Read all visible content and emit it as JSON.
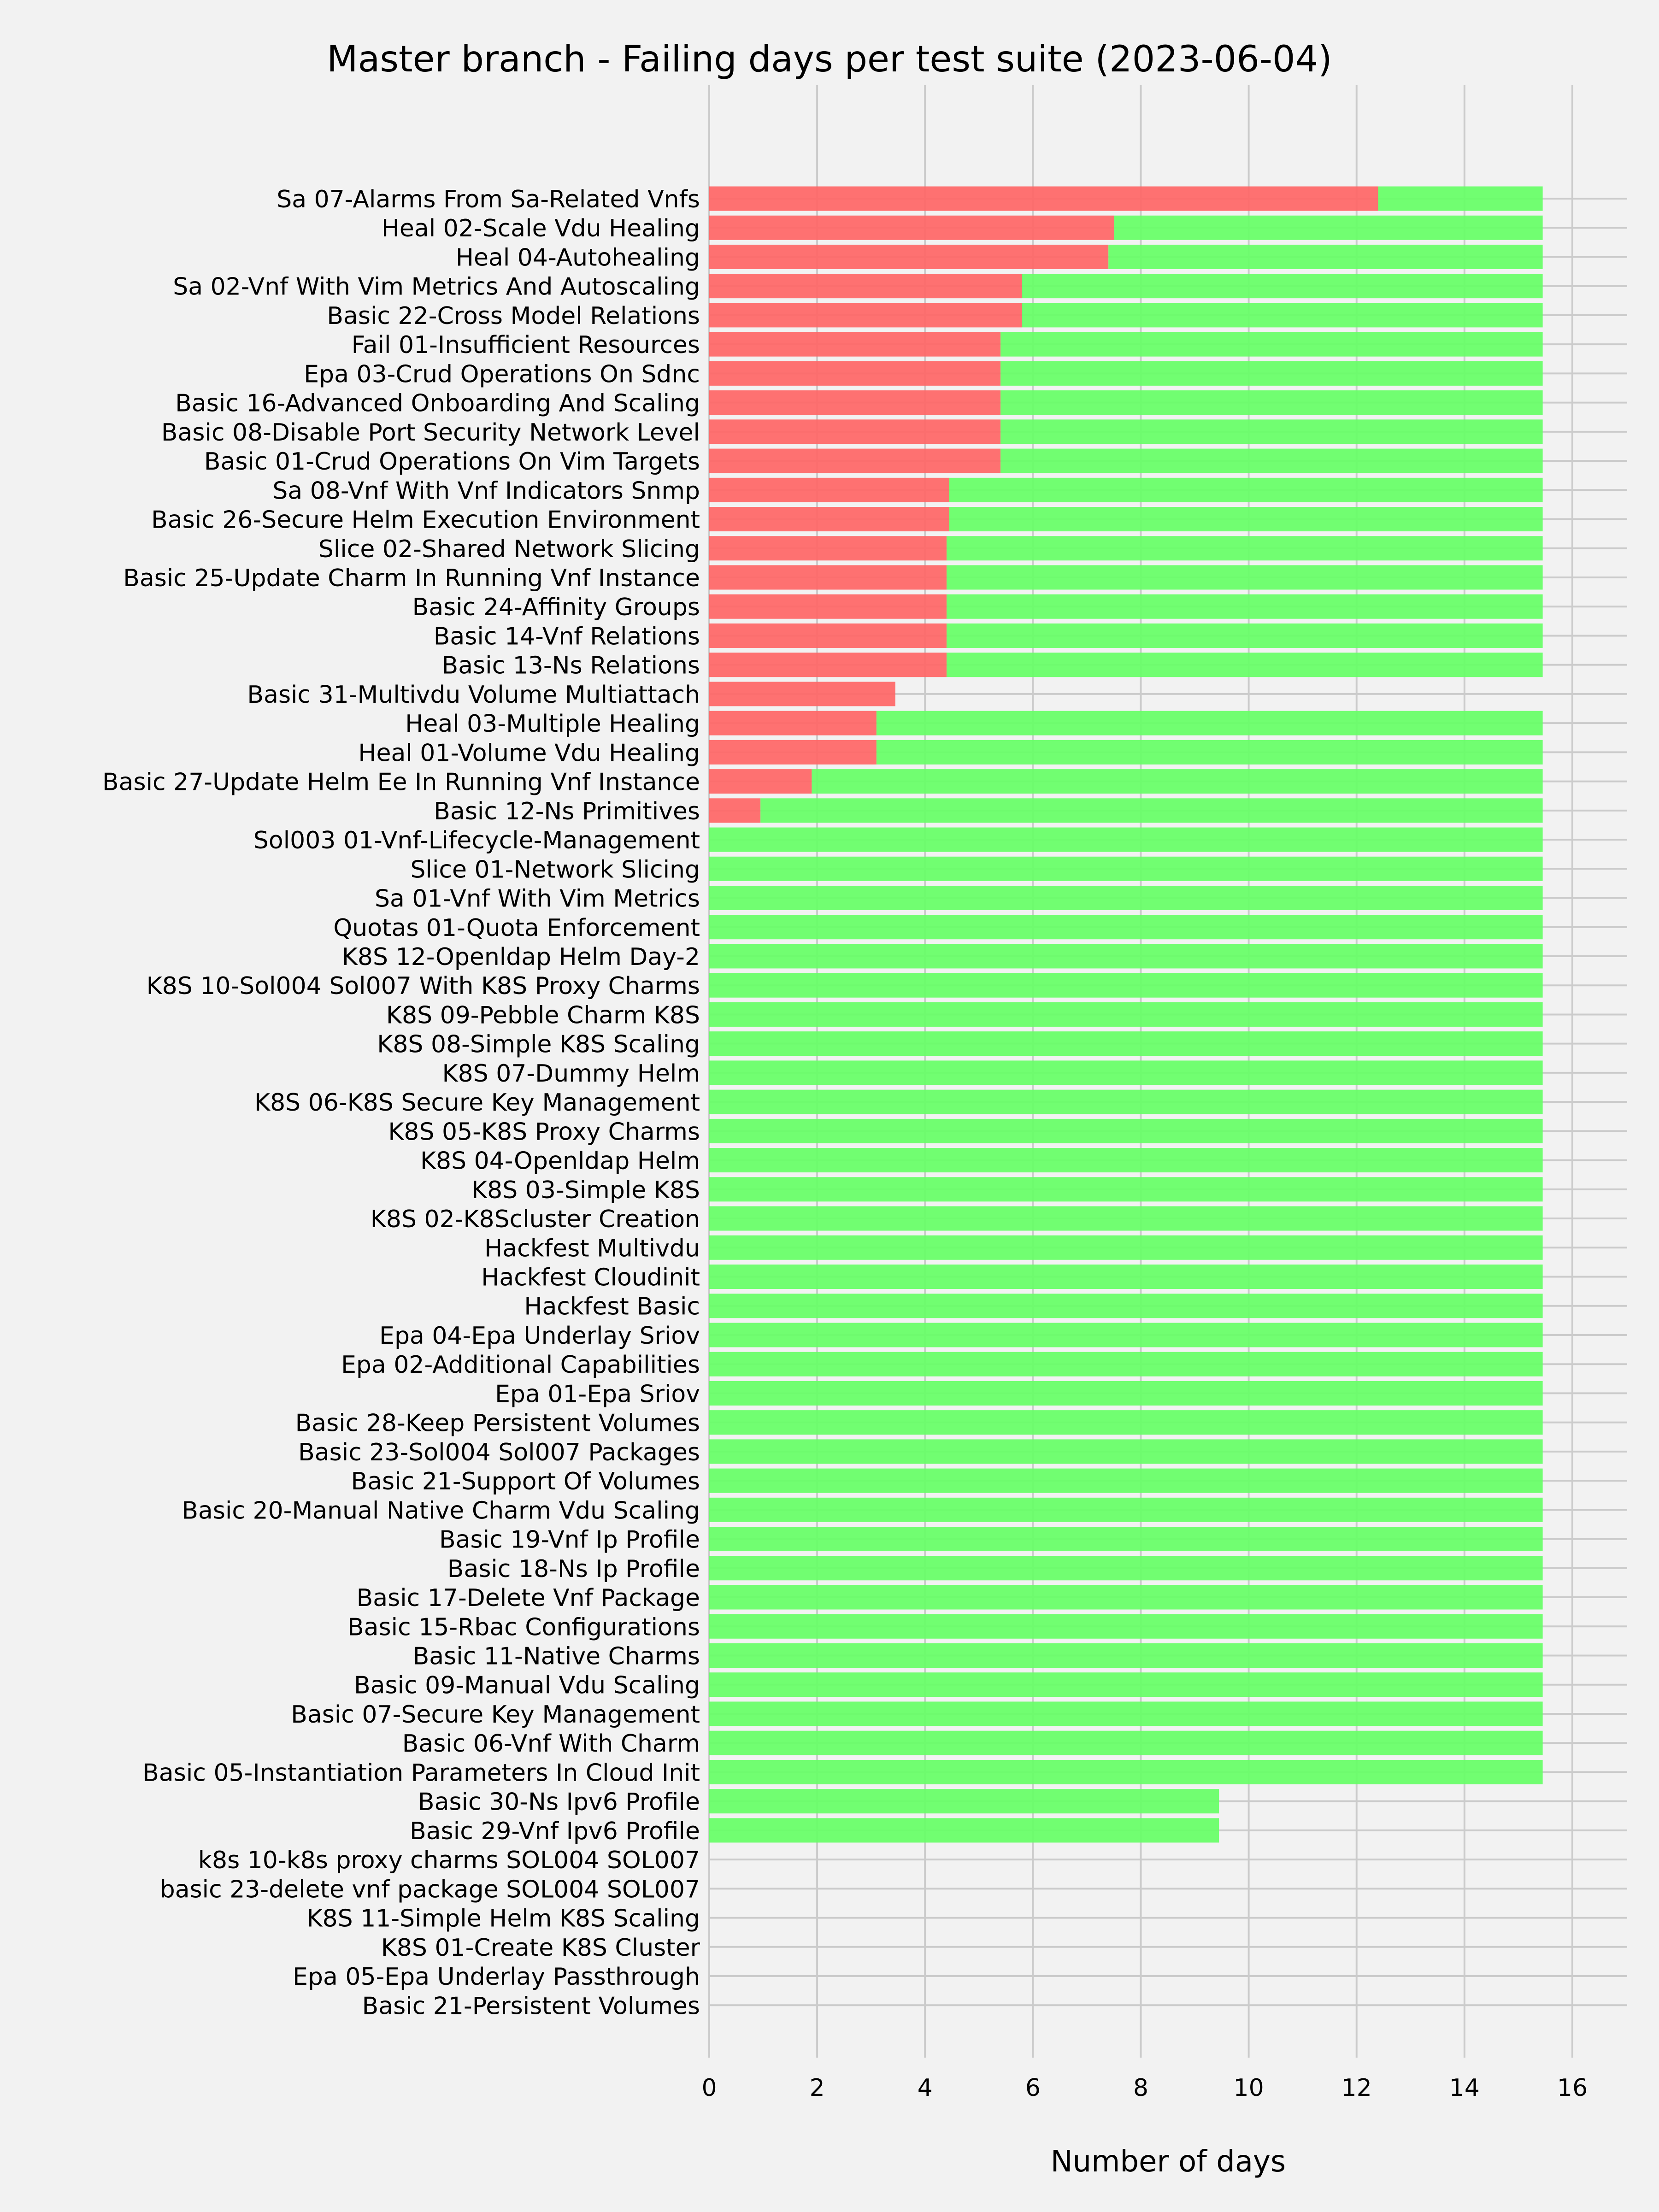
{
  "chart_data": {
    "type": "bar",
    "orientation": "horizontal",
    "stacked": true,
    "title": "Master branch - Failing days per test suite (2023-06-04)",
    "xlabel": "Number of days",
    "ylabel": "",
    "xlim": [
      0,
      16.2
    ],
    "xticks": [
      0,
      2,
      4,
      6,
      8,
      10,
      12,
      14,
      16
    ],
    "grid": true,
    "colors": {
      "failing": "#ff6666",
      "passing": "#66ff66",
      "background": "#f2f2f2",
      "grid": "#cbcbcb"
    },
    "categories": [
      "Sa 07-Alarms From Sa-Related Vnfs",
      "Heal 02-Scale Vdu Healing",
      "Heal 04-Autohealing",
      "Sa 02-Vnf With Vim Metrics And Autoscaling",
      "Basic 22-Cross Model Relations",
      "Fail 01-Insufficient Resources",
      "Epa 03-Crud Operations On Sdnc",
      "Basic 16-Advanced Onboarding And Scaling",
      "Basic 08-Disable Port Security Network Level",
      "Basic 01-Crud Operations On Vim Targets",
      "Sa 08-Vnf With Vnf Indicators Snmp",
      "Basic 26-Secure Helm Execution Environment",
      "Slice 02-Shared Network Slicing",
      "Basic 25-Update Charm In Running Vnf Instance",
      "Basic 24-Affinity Groups",
      "Basic 14-Vnf Relations",
      "Basic 13-Ns Relations",
      "Basic 31-Multivdu Volume Multiattach",
      "Heal 03-Multiple Healing",
      "Heal 01-Volume Vdu Healing",
      "Basic 27-Update Helm Ee In Running Vnf Instance",
      "Basic 12-Ns Primitives",
      "Sol003 01-Vnf-Lifecycle-Management",
      "Slice 01-Network Slicing",
      "Sa 01-Vnf With Vim Metrics",
      "Quotas 01-Quota Enforcement",
      "K8S 12-Openldap Helm Day-2",
      "K8S 10-Sol004 Sol007 With K8S Proxy Charms",
      "K8S 09-Pebble Charm K8S",
      "K8S 08-Simple K8S Scaling",
      "K8S 07-Dummy Helm",
      "K8S 06-K8S Secure Key Management",
      "K8S 05-K8S Proxy Charms",
      "K8S 04-Openldap Helm",
      "K8S 03-Simple K8S",
      "K8S 02-K8Scluster Creation",
      "Hackfest Multivdu",
      "Hackfest Cloudinit",
      "Hackfest Basic",
      "Epa 04-Epa Underlay Sriov",
      "Epa 02-Additional Capabilities",
      "Epa 01-Epa Sriov",
      "Basic 28-Keep Persistent Volumes",
      "Basic 23-Sol004 Sol007 Packages",
      "Basic 21-Support Of Volumes",
      "Basic 20-Manual Native Charm Vdu Scaling",
      "Basic 19-Vnf Ip Profile",
      "Basic 18-Ns Ip Profile",
      "Basic 17-Delete Vnf Package",
      "Basic 15-Rbac Configurations",
      "Basic 11-Native Charms",
      "Basic 09-Manual Vdu Scaling",
      "Basic 07-Secure Key Management",
      "Basic 06-Vnf With Charm",
      "Basic 05-Instantiation Parameters In Cloud Init",
      "Basic 30-Ns Ipv6 Profile",
      "Basic 29-Vnf Ipv6 Profile",
      "k8s 10-k8s proxy charms SOL004 SOL007",
      "basic 23-delete vnf package SOL004 SOL007",
      "K8S 11-Simple Helm K8S Scaling",
      "K8S 01-Create K8S Cluster",
      "Epa 05-Epa Underlay Passthrough",
      "Basic 21-Persistent Volumes"
    ],
    "series": [
      {
        "key": "failing",
        "values": [
          12.4,
          7.5,
          7.4,
          5.8,
          5.8,
          5.4,
          5.4,
          5.4,
          5.4,
          5.4,
          4.45,
          4.45,
          4.4,
          4.4,
          4.4,
          4.4,
          4.4,
          3.45,
          3.1,
          3.1,
          1.9,
          0.95,
          0,
          0,
          0,
          0,
          0,
          0,
          0,
          0,
          0,
          0,
          0,
          0,
          0,
          0,
          0,
          0,
          0,
          0,
          0,
          0,
          0,
          0,
          0,
          0,
          0,
          0,
          0,
          0,
          0,
          0,
          0,
          0,
          0,
          0,
          0,
          0,
          0,
          0,
          0,
          0,
          0
        ]
      },
      {
        "key": "passing",
        "values": [
          3.05,
          7.95,
          8.05,
          9.65,
          9.65,
          10.05,
          10.05,
          10.05,
          10.05,
          10.05,
          11.0,
          11.0,
          11.05,
          11.05,
          11.05,
          11.05,
          11.05,
          0,
          12.35,
          12.35,
          13.55,
          14.5,
          15.45,
          15.45,
          15.45,
          15.45,
          15.45,
          15.45,
          15.45,
          15.45,
          15.45,
          15.45,
          15.45,
          15.45,
          15.45,
          15.45,
          15.45,
          15.45,
          15.45,
          15.45,
          15.45,
          15.45,
          15.45,
          15.45,
          15.45,
          15.45,
          15.45,
          15.45,
          15.45,
          15.45,
          15.45,
          15.45,
          15.45,
          15.45,
          15.45,
          9.45,
          9.45,
          0,
          0,
          0,
          0,
          0,
          0
        ]
      }
    ]
  }
}
